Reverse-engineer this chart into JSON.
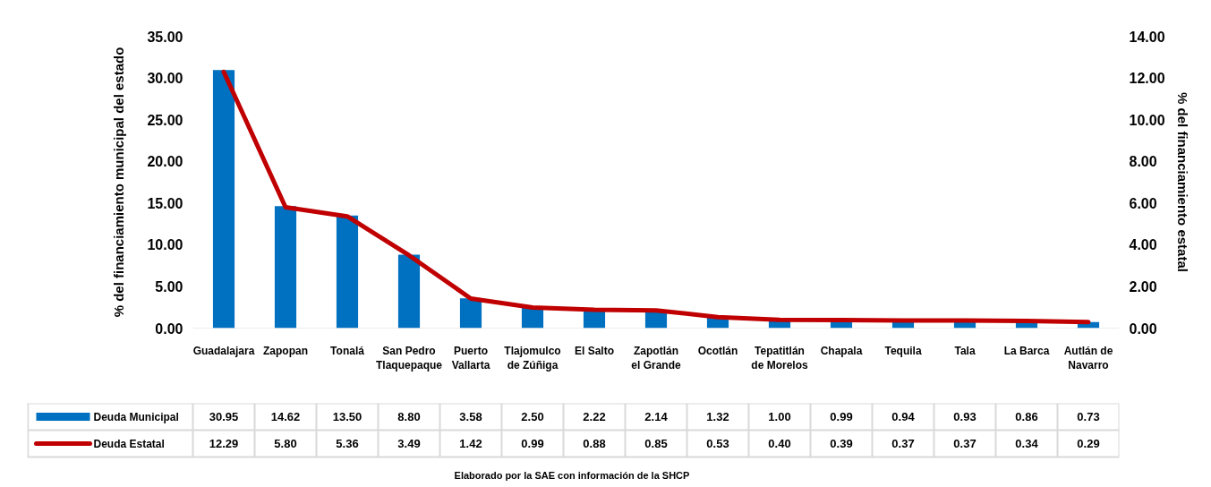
{
  "chart_data": {
    "type": "bar",
    "categories": [
      "Guadalajara",
      "Zapopan",
      "Tonalá",
      "San Pedro Tlaquepaque",
      "Puerto Vallarta",
      "Tlajomulco de Zúñiga",
      "El Salto",
      "Zapotlán el Grande",
      "Ocotlán",
      "Tepatitlán de Morelos",
      "Chapala",
      "Tequila",
      "Tala",
      "La Barca",
      "Autlán de Navarro"
    ],
    "series": [
      {
        "name": "Deuda Municipal",
        "color": "#0070c0",
        "values": [
          30.95,
          14.62,
          13.5,
          8.8,
          3.58,
          2.5,
          2.22,
          2.14,
          1.32,
          1.0,
          0.99,
          0.94,
          0.93,
          0.86,
          0.73
        ],
        "value_labels": [
          "30.95",
          "14.62",
          "13.50",
          "8.80",
          "3.58",
          "2.50",
          "2.22",
          "2.14",
          "1.32",
          "1.00",
          "0.99",
          "0.94",
          "0.93",
          "0.86",
          "0.73"
        ]
      },
      {
        "name": "Deuda Estatal",
        "color": "#c00000",
        "type": "line",
        "axis": "y2",
        "values": [
          12.29,
          5.8,
          5.36,
          3.49,
          1.42,
          0.99,
          0.88,
          0.85,
          0.53,
          0.4,
          0.39,
          0.37,
          0.37,
          0.34,
          0.29
        ],
        "value_labels": [
          "12.29",
          "5.80",
          "5.36",
          "3.49",
          "1.42",
          "0.99",
          "0.88",
          "0.85",
          "0.53",
          "0.40",
          "0.39",
          "0.37",
          "0.37",
          "0.34",
          "0.29"
        ]
      }
    ],
    "ylabel": "% del financiamiento municipal del estado",
    "y2label": "% del financiamiento estatal",
    "ylim": [
      0,
      35
    ],
    "yticks": [
      {
        "value": 0,
        "label": "0.00"
      },
      {
        "value": 5,
        "label": "5.00"
      },
      {
        "value": 10,
        "label": "10.00"
      },
      {
        "value": 15,
        "label": "15.00"
      },
      {
        "value": 20,
        "label": "20.00"
      },
      {
        "value": 25,
        "label": "25.00"
      },
      {
        "value": 30,
        "label": "30.00"
      },
      {
        "value": 35,
        "label": "35.00"
      }
    ],
    "y2lim": [
      0,
      14
    ],
    "y2ticks": [
      {
        "value": 0,
        "label": "0.00"
      },
      {
        "value": 2,
        "label": "2.00"
      },
      {
        "value": 4,
        "label": "4.00"
      },
      {
        "value": 6,
        "label": "6.00"
      },
      {
        "value": 8,
        "label": "8.00"
      },
      {
        "value": 10,
        "label": "10.00"
      },
      {
        "value": 12,
        "label": "12.00"
      },
      {
        "value": 14,
        "label": "14.00"
      }
    ],
    "grid": false,
    "legend": "bottom",
    "annotations": [
      "Elaborado por la SAE con información de  la SHCP"
    ]
  }
}
